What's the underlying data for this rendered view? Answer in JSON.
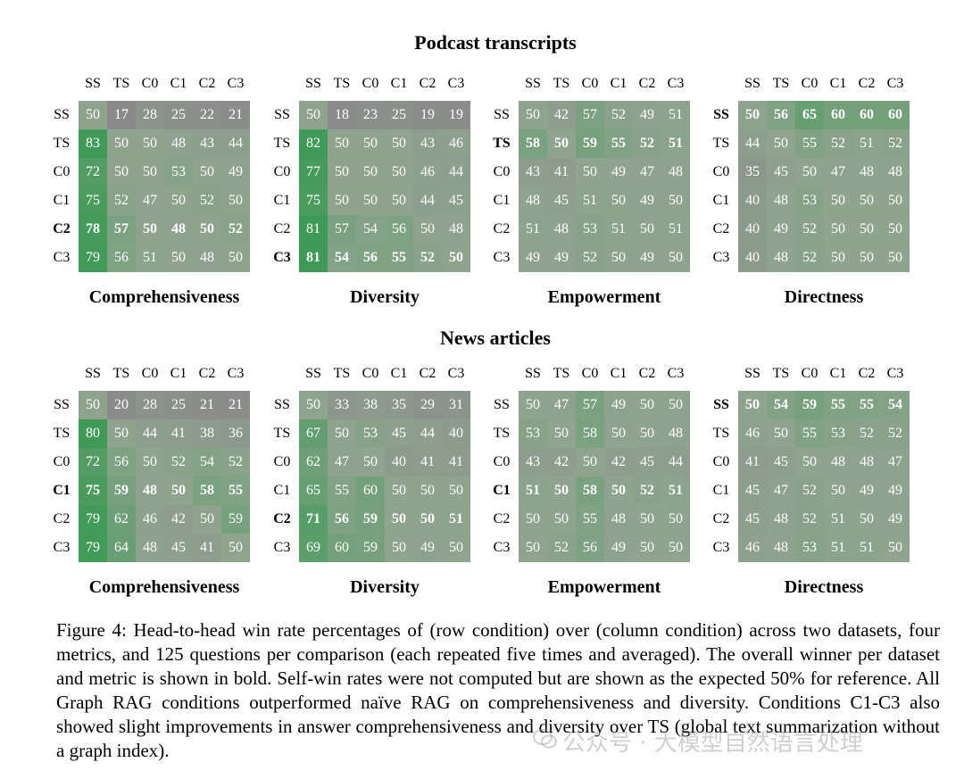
{
  "sections": [
    {
      "title": "Podcast transcripts",
      "charts": [
        {
          "type": "heatmap",
          "metric": "Comprehensiveness",
          "labels": [
            "SS",
            "TS",
            "C0",
            "C1",
            "C2",
            "C3"
          ],
          "bold_row": "C2",
          "values": [
            [
              50,
              17,
              28,
              25,
              22,
              21
            ],
            [
              83,
              50,
              50,
              48,
              43,
              44
            ],
            [
              72,
              50,
              50,
              53,
              50,
              49
            ],
            [
              75,
              52,
              47,
              50,
              52,
              50
            ],
            [
              78,
              57,
              50,
              48,
              50,
              52
            ],
            [
              79,
              56,
              51,
              50,
              48,
              50
            ]
          ]
        },
        {
          "type": "heatmap",
          "metric": "Diversity",
          "labels": [
            "SS",
            "TS",
            "C0",
            "C1",
            "C2",
            "C3"
          ],
          "bold_row": "C3",
          "values": [
            [
              50,
              18,
              23,
              25,
              19,
              19
            ],
            [
              82,
              50,
              50,
              50,
              43,
              46
            ],
            [
              77,
              50,
              50,
              50,
              46,
              44
            ],
            [
              75,
              50,
              50,
              50,
              44,
              45
            ],
            [
              81,
              57,
              54,
              56,
              50,
              48
            ],
            [
              81,
              54,
              56,
              55,
              52,
              50
            ]
          ]
        },
        {
          "type": "heatmap",
          "metric": "Empowerment",
          "labels": [
            "SS",
            "TS",
            "C0",
            "C1",
            "C2",
            "C3"
          ],
          "bold_row": "TS",
          "values": [
            [
              50,
              42,
              57,
              52,
              49,
              51
            ],
            [
              58,
              50,
              59,
              55,
              52,
              51
            ],
            [
              43,
              41,
              50,
              49,
              47,
              48
            ],
            [
              48,
              45,
              51,
              50,
              49,
              50
            ],
            [
              51,
              48,
              53,
              51,
              50,
              51
            ],
            [
              49,
              49,
              52,
              50,
              49,
              50
            ]
          ]
        },
        {
          "type": "heatmap",
          "metric": "Directness",
          "labels": [
            "SS",
            "TS",
            "C0",
            "C1",
            "C2",
            "C3"
          ],
          "bold_row": "SS",
          "values": [
            [
              50,
              56,
              65,
              60,
              60,
              60
            ],
            [
              44,
              50,
              55,
              52,
              51,
              52
            ],
            [
              35,
              45,
              50,
              47,
              48,
              48
            ],
            [
              40,
              48,
              53,
              50,
              50,
              50
            ],
            [
              40,
              49,
              52,
              50,
              50,
              50
            ],
            [
              40,
              48,
              52,
              50,
              50,
              50
            ]
          ]
        }
      ]
    },
    {
      "title": "News articles",
      "charts": [
        {
          "type": "heatmap",
          "metric": "Comprehensiveness",
          "labels": [
            "SS",
            "TS",
            "C0",
            "C1",
            "C2",
            "C3"
          ],
          "bold_row": "C1",
          "values": [
            [
              50,
              20,
              28,
              25,
              21,
              21
            ],
            [
              80,
              50,
              44,
              41,
              38,
              36
            ],
            [
              72,
              56,
              50,
              52,
              54,
              52
            ],
            [
              75,
              59,
              48,
              50,
              58,
              55
            ],
            [
              79,
              62,
              46,
              42,
              50,
              59
            ],
            [
              79,
              64,
              48,
              45,
              41,
              50
            ]
          ]
        },
        {
          "type": "heatmap",
          "metric": "Diversity",
          "labels": [
            "SS",
            "TS",
            "C0",
            "C1",
            "C2",
            "C3"
          ],
          "bold_row": "C2",
          "values": [
            [
              50,
              33,
              38,
              35,
              29,
              31
            ],
            [
              67,
              50,
              53,
              45,
              44,
              40
            ],
            [
              62,
              47,
              50,
              40,
              41,
              41
            ],
            [
              65,
              55,
              60,
              50,
              50,
              50
            ],
            [
              71,
              56,
              59,
              50,
              50,
              51
            ],
            [
              69,
              60,
              59,
              50,
              49,
              50
            ]
          ]
        },
        {
          "type": "heatmap",
          "metric": "Empowerment",
          "labels": [
            "SS",
            "TS",
            "C0",
            "C1",
            "C2",
            "C3"
          ],
          "bold_row": "C1",
          "values": [
            [
              50,
              47,
              57,
              49,
              50,
              50
            ],
            [
              53,
              50,
              58,
              50,
              50,
              48
            ],
            [
              43,
              42,
              50,
              42,
              45,
              44
            ],
            [
              51,
              50,
              58,
              50,
              52,
              51
            ],
            [
              50,
              50,
              55,
              48,
              50,
              50
            ],
            [
              50,
              52,
              56,
              49,
              50,
              50
            ]
          ]
        },
        {
          "type": "heatmap",
          "metric": "Directness",
          "labels": [
            "SS",
            "TS",
            "C0",
            "C1",
            "C2",
            "C3"
          ],
          "bold_row": "SS",
          "values": [
            [
              50,
              54,
              59,
              55,
              55,
              54
            ],
            [
              46,
              50,
              55,
              53,
              52,
              52
            ],
            [
              41,
              45,
              50,
              48,
              48,
              47
            ],
            [
              45,
              47,
              52,
              50,
              49,
              49
            ],
            [
              45,
              48,
              52,
              51,
              50,
              49
            ],
            [
              46,
              48,
              53,
              51,
              51,
              50
            ]
          ]
        }
      ]
    }
  ],
  "caption": "Figure 4: Head-to-head win rate percentages of (row condition) over (column condition) across two datasets, four metrics, and 125 questions per comparison (each repeated five times and averaged). The overall winner per dataset and metric is shown in bold. Self-win rates were not computed but are shown as the expected 50% for reference. All Graph RAG conditions outperformed naïve RAG on comprehensiveness and diversity. Conditions C1-C3 also showed slight improvements in answer comprehensiveness and diversity over TS (global text summarization without a graph index).",
  "watermark": "公众号 · 大模型自然语言处理",
  "colors": {
    "low": "#8a8a8a",
    "mid": "#8fa38f",
    "high": "#3f9a57",
    "text": "#ffffff"
  }
}
